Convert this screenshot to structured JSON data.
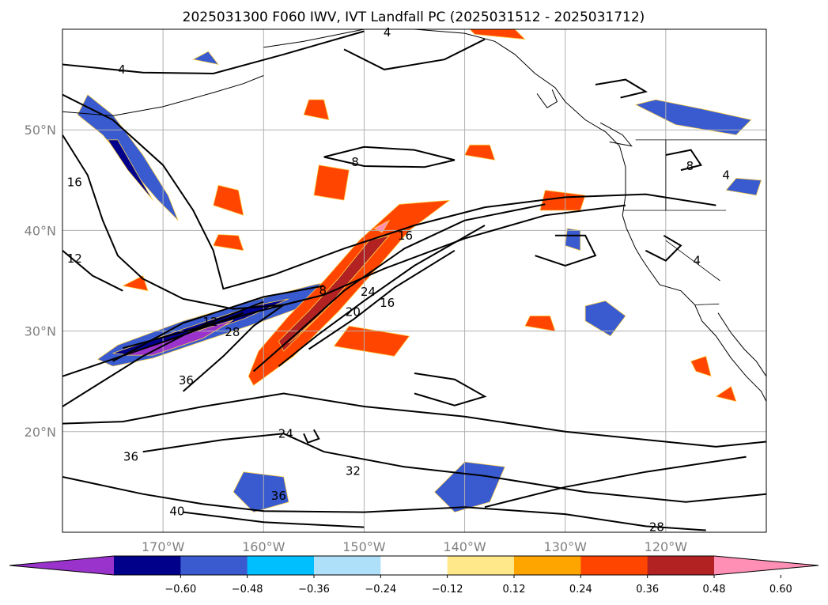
{
  "chart_data": {
    "type": "heatmap",
    "title": "2025031300 F060 IWV, IVT Landfall PC (2025031512 - 2025031712)",
    "map": {
      "lon_range": [
        -180,
        -110
      ],
      "lat_range": [
        10,
        60
      ],
      "lon_ticks": [
        -170,
        -160,
        -150,
        -140,
        -130,
        -120
      ],
      "lon_tick_labels": [
        "170°W",
        "160°W",
        "150°W",
        "140°W",
        "130°W",
        "120°W"
      ],
      "lat_ticks": [
        20,
        30,
        40,
        50
      ],
      "lat_tick_labels": [
        "20°N",
        "30°N",
        "40°N",
        "50°N"
      ],
      "grid": true
    },
    "colorbar": {
      "extend": "both",
      "levels": [
        -0.72,
        -0.6,
        -0.48,
        -0.36,
        -0.24,
        -0.12,
        0.12,
        0.24,
        0.36,
        0.48,
        0.6,
        0.72
      ],
      "colors": [
        "#9933cc",
        "#00008b",
        "#3a5bcf",
        "#00bfff",
        "#aee0fa",
        "#ffffff",
        "#ffe88a",
        "#ffa500",
        "#ff4500",
        "#b22222",
        "#ff8fb4"
      ],
      "tick_values": [
        -0.6,
        -0.48,
        -0.36,
        -0.24,
        -0.12,
        0.12,
        0.24,
        0.36,
        0.48,
        0.6
      ],
      "tick_labels": [
        "−0.60",
        "−0.48",
        "−0.36",
        "−0.24",
        "−0.12",
        "0.12",
        "0.24",
        "0.36",
        "0.48",
        "0.60"
      ]
    },
    "contour_labels": [
      {
        "text": "4",
        "lon": -174.1,
        "lat": 56.0
      },
      {
        "text": "4",
        "lon": -147.7,
        "lat": 59.7
      },
      {
        "text": "16",
        "lon": -178.8,
        "lat": 44.8
      },
      {
        "text": "12",
        "lon": -178.8,
        "lat": 37.2
      },
      {
        "text": "8",
        "lon": -150.9,
        "lat": 46.8
      },
      {
        "text": "16",
        "lon": -145.9,
        "lat": 39.5
      },
      {
        "text": "8",
        "lon": -154.1,
        "lat": 34.0
      },
      {
        "text": "24",
        "lon": -149.6,
        "lat": 33.9
      },
      {
        "text": "16",
        "lon": -147.7,
        "lat": 32.8
      },
      {
        "text": "20",
        "lon": -151.1,
        "lat": 31.9
      },
      {
        "text": "12",
        "lon": -165.3,
        "lat": 30.9
      },
      {
        "text": "28",
        "lon": -163.1,
        "lat": 29.9
      },
      {
        "text": "36",
        "lon": -167.7,
        "lat": 25.1
      },
      {
        "text": "24",
        "lon": -157.8,
        "lat": 19.8
      },
      {
        "text": "36",
        "lon": -173.2,
        "lat": 17.5
      },
      {
        "text": "32",
        "lon": -151.1,
        "lat": 16.1
      },
      {
        "text": "36",
        "lon": -158.5,
        "lat": 13.6
      },
      {
        "text": "40",
        "lon": -168.6,
        "lat": 12.1
      },
      {
        "text": "28",
        "lon": -120.9,
        "lat": 10.5
      },
      {
        "text": "8",
        "lon": -117.6,
        "lat": 46.4
      },
      {
        "text": "4",
        "lon": -114.0,
        "lat": 45.5
      },
      {
        "text": "4",
        "lon": -116.9,
        "lat": 37.0
      }
    ]
  }
}
